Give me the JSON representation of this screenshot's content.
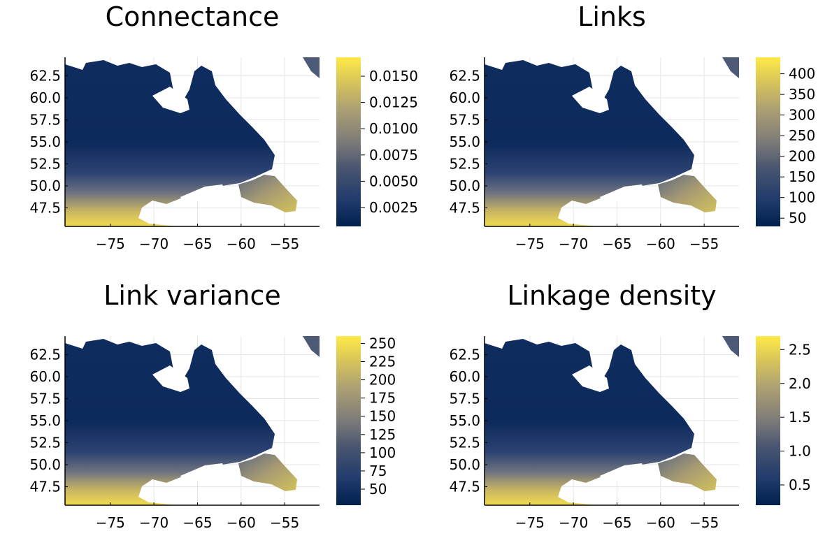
{
  "colors": {
    "cividis_low": "#00204d",
    "cividis_mid": "#7c7b78",
    "cividis_high": "#ffea46",
    "land_dark": "#1f3a6b",
    "axis": "#000000",
    "grid": "#e6e6e6"
  },
  "chart_data": [
    {
      "type": "heatmap",
      "title": "Connectance",
      "xticks": [
        "−75",
        "−70",
        "−65",
        "−60",
        "−55"
      ],
      "xtick_values": [
        -75,
        -70,
        -65,
        -60,
        -55
      ],
      "yticks": [
        "62.5",
        "60.0",
        "57.5",
        "55.0",
        "52.5",
        "50.0",
        "47.5"
      ],
      "ytick_values": [
        62.5,
        60.0,
        57.5,
        55.0,
        52.5,
        50.0,
        47.5
      ],
      "xlim": [
        -80.2,
        -51.0
      ],
      "ylim": [
        45.4,
        64.6
      ],
      "colorbar": {
        "colormap": "cividis",
        "range": [
          0.0007,
          0.0168
        ],
        "tick_labels": [
          "0.0025",
          "0.0050",
          "0.0075",
          "0.0100",
          "0.0125",
          "0.0150"
        ],
        "tick_values": [
          0.0025,
          0.005,
          0.0075,
          0.01,
          0.0125,
          0.015
        ]
      },
      "grid": true
    },
    {
      "type": "heatmap",
      "title": "Links",
      "xticks": [
        "−75",
        "−70",
        "−65",
        "−60",
        "−55"
      ],
      "xtick_values": [
        -75,
        -70,
        -65,
        -60,
        -55
      ],
      "yticks": [
        "62.5",
        "60.0",
        "57.5",
        "55.0",
        "52.5",
        "50.0",
        "47.5"
      ],
      "ytick_values": [
        62.5,
        60.0,
        57.5,
        55.0,
        52.5,
        50.0,
        47.5
      ],
      "xlim": [
        -80.2,
        -51.0
      ],
      "ylim": [
        45.4,
        64.6
      ],
      "colorbar": {
        "colormap": "cividis",
        "range": [
          30,
          440
        ],
        "tick_labels": [
          "50",
          "100",
          "150",
          "200",
          "250",
          "300",
          "350",
          "400"
        ],
        "tick_values": [
          50,
          100,
          150,
          200,
          250,
          300,
          350,
          400
        ]
      },
      "grid": true
    },
    {
      "type": "heatmap",
      "title": "Link variance",
      "xticks": [
        "−75",
        "−70",
        "−65",
        "−60",
        "−55"
      ],
      "xtick_values": [
        -75,
        -70,
        -65,
        -60,
        -55
      ],
      "yticks": [
        "62.5",
        "60.0",
        "57.5",
        "55.0",
        "52.5",
        "50.0",
        "47.5"
      ],
      "ytick_values": [
        62.5,
        60.0,
        57.5,
        55.0,
        52.5,
        50.0,
        47.5
      ],
      "xlim": [
        -80.2,
        -51.0
      ],
      "ylim": [
        45.4,
        64.6
      ],
      "colorbar": {
        "colormap": "cividis",
        "range": [
          28,
          260
        ],
        "tick_labels": [
          "50",
          "75",
          "100",
          "125",
          "150",
          "175",
          "200",
          "225",
          "250"
        ],
        "tick_values": [
          50,
          75,
          100,
          125,
          150,
          175,
          200,
          225,
          250
        ]
      },
      "grid": true
    },
    {
      "type": "heatmap",
      "title": "Linkage density",
      "xticks": [
        "−75",
        "−70",
        "−65",
        "−60",
        "−55"
      ],
      "xtick_values": [
        -75,
        -70,
        -65,
        -60,
        -55
      ],
      "yticks": [
        "62.5",
        "60.0",
        "57.5",
        "55.0",
        "52.5",
        "50.0",
        "47.5"
      ],
      "ytick_values": [
        62.5,
        60.0,
        57.5,
        55.0,
        52.5,
        50.0,
        47.5
      ],
      "xlim": [
        -80.2,
        -51.0
      ],
      "ylim": [
        45.4,
        64.6
      ],
      "colorbar": {
        "colormap": "cividis",
        "range": [
          0.2,
          2.7
        ],
        "tick_labels": [
          "0.5",
          "1.0",
          "1.5",
          "2.0",
          "2.5"
        ],
        "tick_values": [
          0.5,
          1.0,
          1.5,
          2.0,
          2.5
        ]
      },
      "grid": true
    }
  ]
}
